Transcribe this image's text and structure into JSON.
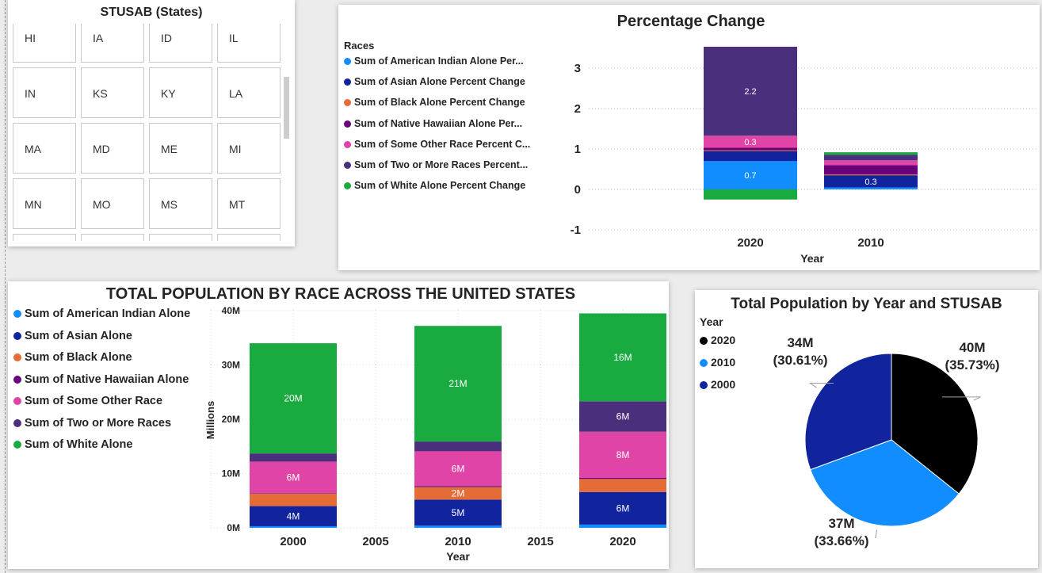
{
  "slicer": {
    "title": "STUSAB (States)",
    "states": [
      "HI",
      "IA",
      "ID",
      "IL",
      "IN",
      "KS",
      "KY",
      "LA",
      "MA",
      "MD",
      "ME",
      "MI",
      "MN",
      "MO",
      "MS",
      "MT",
      "",
      "",
      "",
      ""
    ]
  },
  "percent_change": {
    "title": "Percentage Change",
    "legend_title": "Races",
    "legend": [
      {
        "label": "Sum of American Indian Alone Per...",
        "color": "#118dff"
      },
      {
        "label": "Sum of Asian Alone Percent Change",
        "color": "#12239e"
      },
      {
        "label": "Sum of Black Alone Percent Change",
        "color": "#e66c37"
      },
      {
        "label": "Sum of Native Hawaiian Alone Per...",
        "color": "#6b007b"
      },
      {
        "label": "Sum of Some Other Race Percent C...",
        "color": "#e044a7"
      },
      {
        "label": "Sum of Two or More Races Percent...",
        "color": "#4a2f7d"
      },
      {
        "label": "Sum of White Alone Percent Change",
        "color": "#1aab40"
      }
    ]
  },
  "total_population": {
    "title": "TOTAL POPULATION BY RACE ACROSS THE UNITED STATES",
    "legend": [
      {
        "label": "Sum of American Indian Alone",
        "color": "#118dff"
      },
      {
        "label": "Sum of Asian Alone",
        "color": "#12239e"
      },
      {
        "label": "Sum of Black Alone",
        "color": "#e66c37"
      },
      {
        "label": "Sum of Native Hawaiian Alone",
        "color": "#6b007b"
      },
      {
        "label": "Sum of Some Other Race",
        "color": "#e044a7"
      },
      {
        "label": "Sum of Two or More Races",
        "color": "#4a2f7d"
      },
      {
        "label": "Sum of White Alone",
        "color": "#1aab40"
      }
    ]
  },
  "pie": {
    "title": "Total Population by Year and STUSAB",
    "legend_title": "Year",
    "legend": [
      {
        "label": "2020",
        "color": "#000000"
      },
      {
        "label": "2010",
        "color": "#118dff"
      },
      {
        "label": "2000",
        "color": "#12239e"
      }
    ]
  },
  "chart_data": [
    {
      "type": "bar",
      "stacked": true,
      "title": "Percentage Change",
      "xlabel": "Year",
      "ylabel": "",
      "categories": [
        "2020",
        "2010"
      ],
      "ylim": [
        -1,
        3.5
      ],
      "yticks": [
        -1,
        0,
        1,
        2,
        3
      ],
      "grid": true,
      "legend_title": "Races",
      "legend_position": "left",
      "series": [
        {
          "name": "Sum of American Indian Alone Per...",
          "color": "#118dff",
          "values": [
            0.7,
            0.05
          ]
        },
        {
          "name": "Sum of Asian Alone Percent Change",
          "color": "#12239e",
          "values": [
            0.25,
            0.3
          ]
        },
        {
          "name": "Sum of Black Alone Percent Change",
          "color": "#e66c37",
          "values": [
            0.02,
            0.02
          ]
        },
        {
          "name": "Sum of Native Hawaiian Alone Per...",
          "color": "#6b007b",
          "values": [
            0.06,
            0.23
          ]
        },
        {
          "name": "Sum of Some Other Race Percent C...",
          "color": "#e044a7",
          "values": [
            0.3,
            0.12
          ]
        },
        {
          "name": "Sum of Two or More Races Percent...",
          "color": "#4a2f7d",
          "values": [
            2.2,
            0.14
          ]
        },
        {
          "name": "Sum of White Alone Percent Change",
          "color": "#1aab40",
          "values": [
            -0.25,
            0.06
          ]
        }
      ],
      "data_labels": [
        {
          "category": "2020",
          "series": "Sum of American Indian Alone Per...",
          "text": "0.7"
        },
        {
          "category": "2020",
          "series": "Sum of Some Other Race Percent C...",
          "text": "0.3"
        },
        {
          "category": "2020",
          "series": "Sum of Two or More Races Percent...",
          "text": "2.2"
        },
        {
          "category": "2010",
          "series": "Sum of Asian Alone Percent Change",
          "text": "0.3"
        }
      ]
    },
    {
      "type": "bar",
      "stacked": true,
      "title": "TOTAL POPULATION BY RACE ACROSS THE UNITED STATES",
      "xlabel": "Year",
      "ylabel": "Millions",
      "x": [
        2000,
        2010,
        2020
      ],
      "xticks": [
        "2000",
        "2005",
        "2010",
        "2015",
        "2020"
      ],
      "xlim": [
        1995,
        2025
      ],
      "ylim": [
        0,
        40
      ],
      "yticks": [
        "0M",
        "10M",
        "20M",
        "30M",
        "40M"
      ],
      "grid": true,
      "legend_position": "left",
      "series": [
        {
          "name": "Sum of American Indian Alone",
          "color": "#118dff",
          "values": [
            0.3,
            0.4,
            0.6
          ]
        },
        {
          "name": "Sum of Asian Alone",
          "color": "#12239e",
          "values": [
            3.7,
            4.8,
            6.0
          ]
        },
        {
          "name": "Sum of Black Alone",
          "color": "#e66c37",
          "values": [
            2.3,
            2.3,
            2.4
          ]
        },
        {
          "name": "Sum of Native Hawaiian Alone",
          "color": "#6b007b",
          "values": [
            0.1,
            0.2,
            0.2
          ]
        },
        {
          "name": "Sum of Some Other Race",
          "color": "#e044a7",
          "values": [
            5.8,
            6.4,
            8.5
          ]
        },
        {
          "name": "Sum of Two or More Races",
          "color": "#4a2f7d",
          "values": [
            1.5,
            1.8,
            5.6
          ]
        },
        {
          "name": "Sum of White Alone",
          "color": "#1aab40",
          "values": [
            20.3,
            21.3,
            16.2
          ]
        }
      ],
      "data_labels": [
        {
          "x": 2000,
          "series": "Sum of Asian Alone",
          "text": "4M"
        },
        {
          "x": 2000,
          "series": "Sum of Some Other Race",
          "text": "6M"
        },
        {
          "x": 2000,
          "series": "Sum of White Alone",
          "text": "20M"
        },
        {
          "x": 2010,
          "series": "Sum of Asian Alone",
          "text": "5M"
        },
        {
          "x": 2010,
          "series": "Sum of Black Alone",
          "text": "2M"
        },
        {
          "x": 2010,
          "series": "Sum of Some Other Race",
          "text": "6M"
        },
        {
          "x": 2010,
          "series": "Sum of White Alone",
          "text": "21M"
        },
        {
          "x": 2020,
          "series": "Sum of Asian Alone",
          "text": "6M"
        },
        {
          "x": 2020,
          "series": "Sum of Some Other Race",
          "text": "8M"
        },
        {
          "x": 2020,
          "series": "Sum of Two or More Races",
          "text": "6M"
        },
        {
          "x": 2020,
          "series": "Sum of White Alone",
          "text": "16M"
        }
      ]
    },
    {
      "type": "pie",
      "title": "Total Population by Year and STUSAB",
      "legend_title": "Year",
      "legend_position": "left",
      "slices": [
        {
          "label": "2020",
          "value": 40,
          "percent": 35.73,
          "color": "#000000",
          "value_text": "40M",
          "percent_text": "(35.73%)"
        },
        {
          "label": "2010",
          "value": 37,
          "percent": 33.66,
          "color": "#118dff",
          "value_text": "37M",
          "percent_text": "(33.66%)"
        },
        {
          "label": "2000",
          "value": 34,
          "percent": 30.61,
          "color": "#12239e",
          "value_text": "34M",
          "percent_text": "(30.61%)"
        }
      ]
    }
  ]
}
